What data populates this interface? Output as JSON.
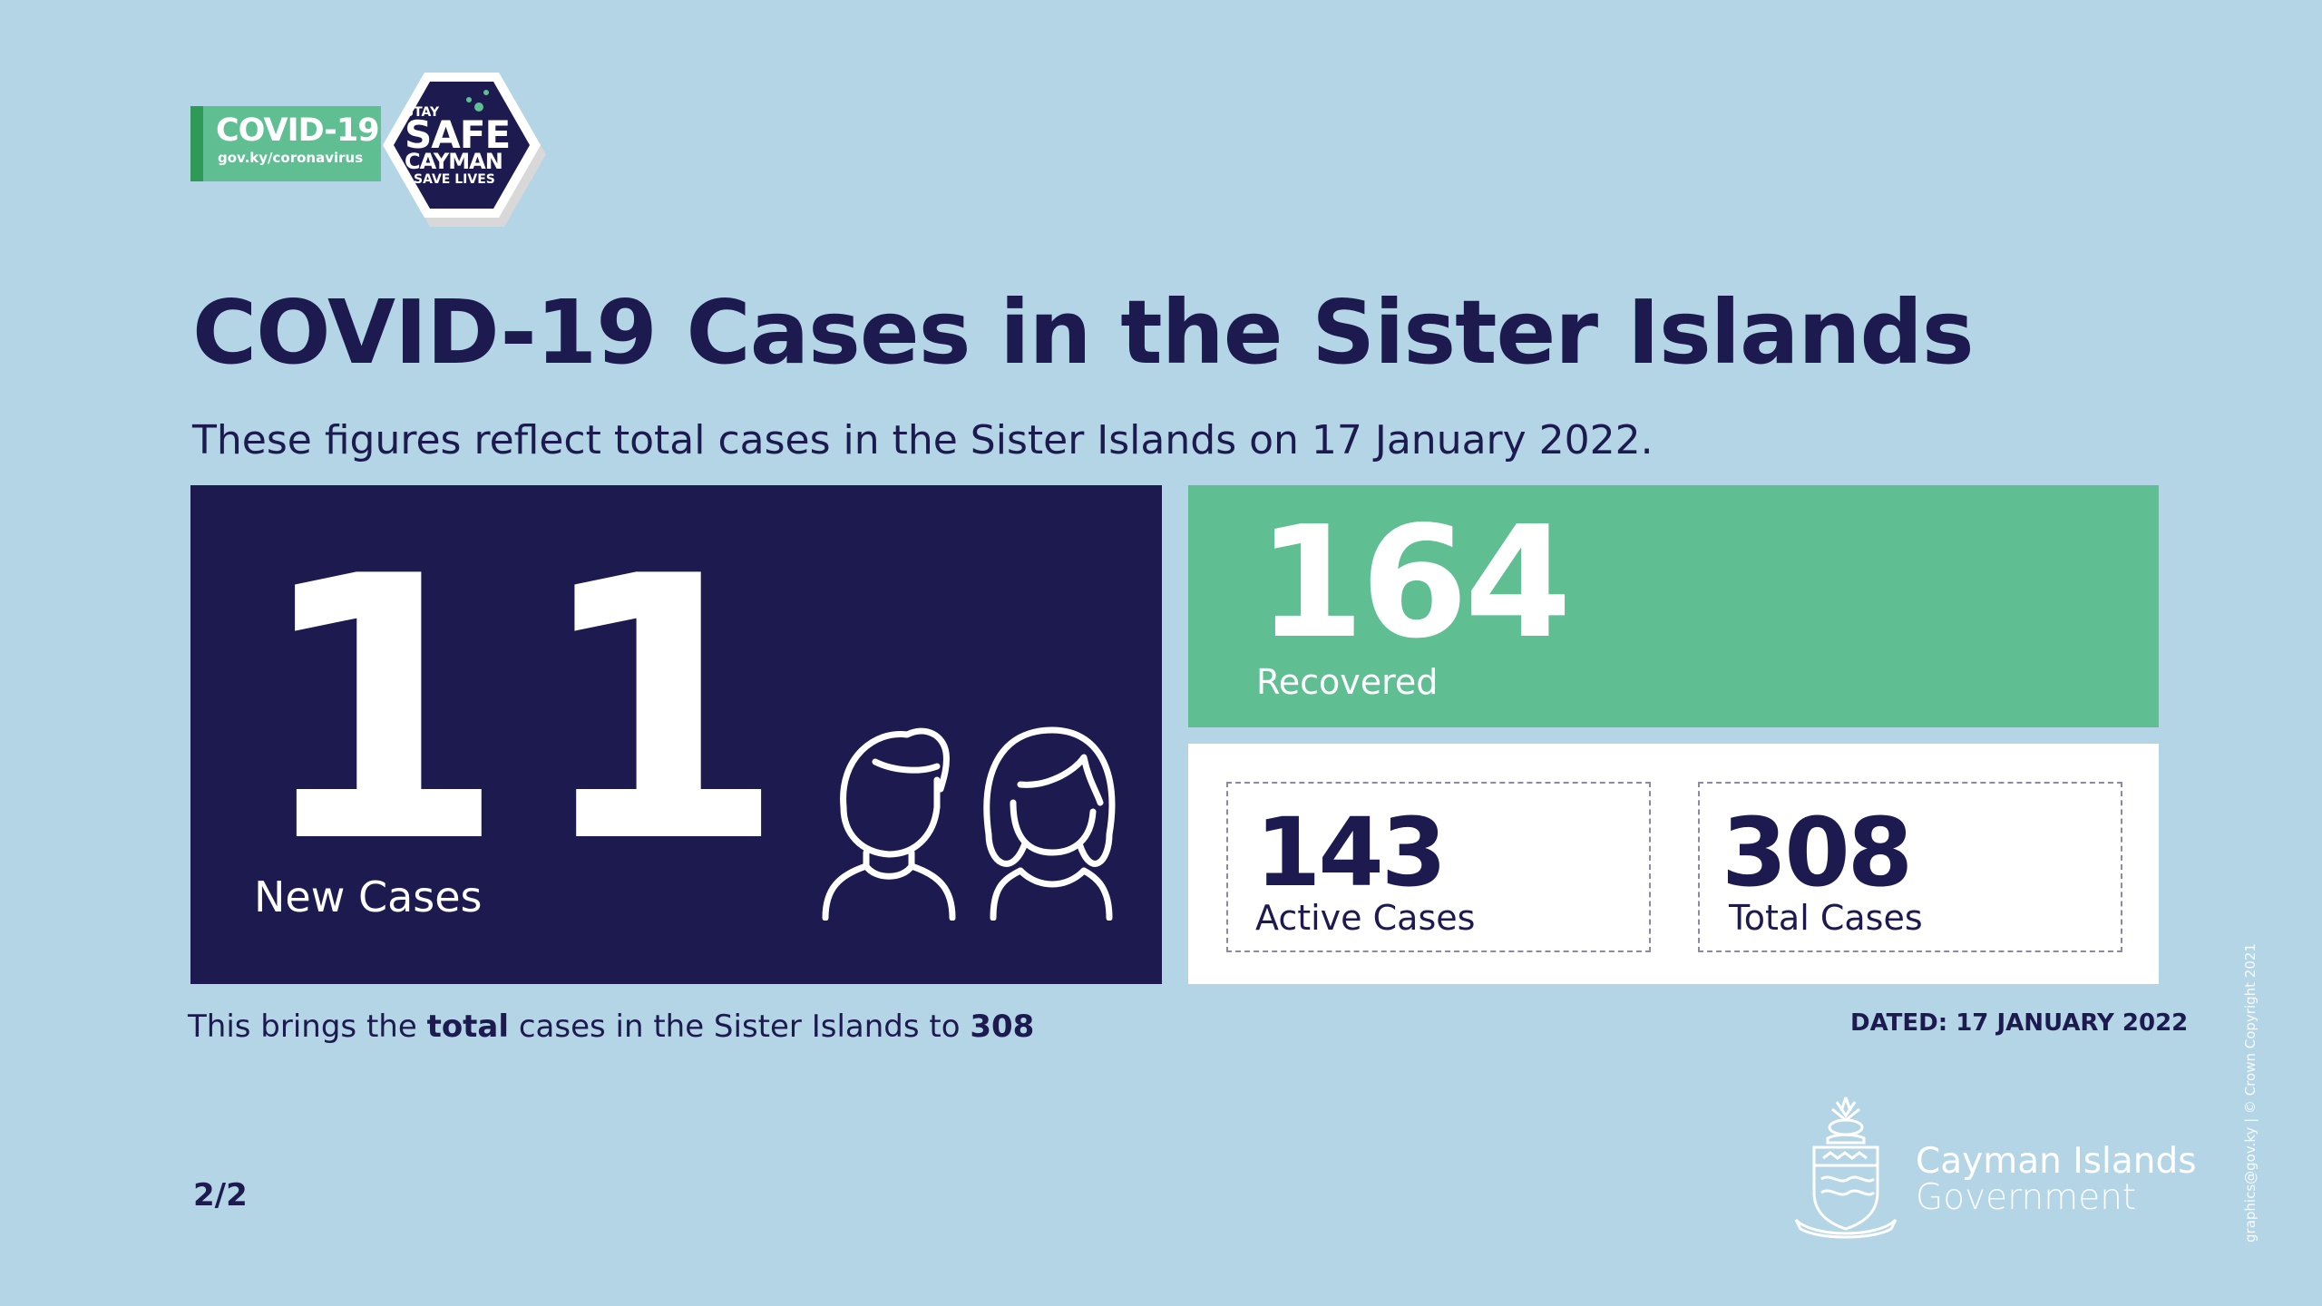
{
  "logo": {
    "title": "COVID-19",
    "url": "gov.ky/coronavirus",
    "hex_line1": "STAY",
    "hex_line2": "SAFE",
    "hex_line3": "CAYMAN",
    "hex_line4": "SAVE LIVES"
  },
  "header": {
    "title": "COVID-19 Cases in the Sister Islands",
    "subtitle": "These figures reflect total cases in the Sister Islands on 17 January 2022."
  },
  "stats": {
    "new_cases": {
      "value": "11",
      "label": "New Cases"
    },
    "recovered": {
      "value": "164",
      "label": "Recovered"
    },
    "active": {
      "value": "143",
      "label": "Active Cases"
    },
    "total": {
      "value": "308",
      "label": "Total Cases"
    }
  },
  "footer": {
    "summary_pre": "This brings the ",
    "summary_bold": "total",
    "summary_mid": " cases in the Sister Islands to ",
    "summary_value": "308",
    "dated": "DATED: 17 JANUARY 2022",
    "page_indicator": "2/2",
    "gov_name_line1": "Cayman Islands",
    "gov_name_line2": "Government",
    "copyright": "graphics@gov.ky | © Crown Copyright 2021"
  },
  "icons": {
    "people": "people-icon",
    "crest": "coat-of-arms-icon"
  },
  "colors": {
    "background": "#b4d5e6",
    "navy": "#1c1a4f",
    "green": "#5fbf93",
    "white": "#ffffff"
  }
}
